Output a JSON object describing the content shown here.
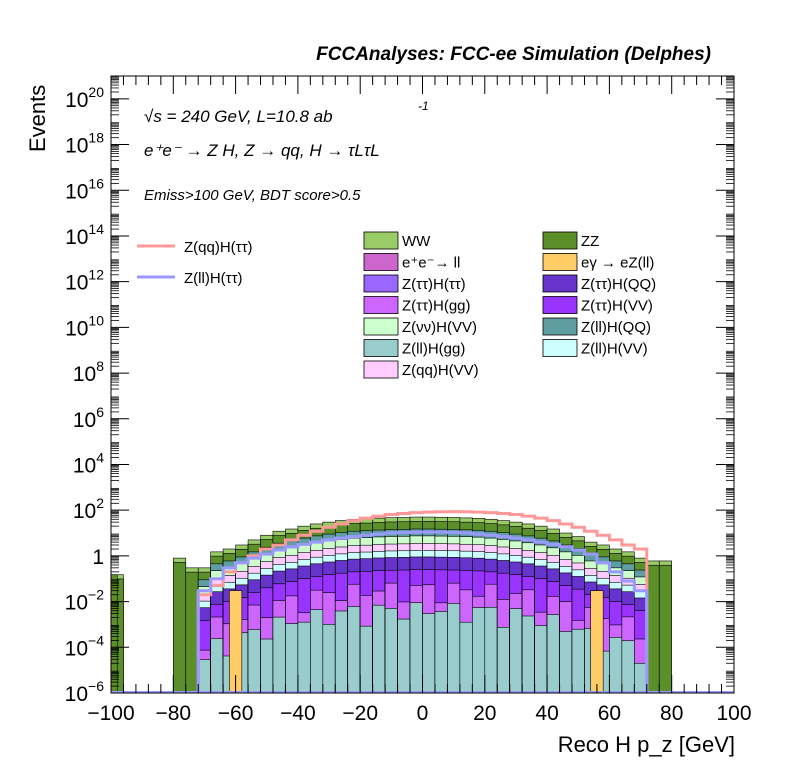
{
  "header": {
    "title": "FCCAnalyses: FCC-ee Simulation (Delphes)"
  },
  "annotations": {
    "line1": "√s = 240 GeV, L=10.8 ab",
    "line1_sup": "-1",
    "line2": "e⁺e⁻ → Z H, Z → qq, H → τLτL",
    "line3": "Emiss>100 GeV, BDT score>0.5"
  },
  "chart_data": {
    "type": "bar",
    "style": "stacked histogram with signal overlay lines",
    "xlabel": "Reco H p_z [GeV]",
    "ylabel": "Events",
    "xlim": [
      -100,
      100
    ],
    "ylim": [
      1e-06,
      1e+21
    ],
    "y_scale": "log",
    "bin_width": 4,
    "x_ticks": [
      -100,
      -80,
      -60,
      -40,
      -20,
      0,
      20,
      40,
      60,
      80,
      100
    ],
    "x_tick_labels": [
      "−100",
      "−80",
      "−60",
      "−40",
      "−20",
      "0",
      "20",
      "40",
      "60",
      "80",
      "100"
    ],
    "y_ticks": [
      {
        "value": 1e-06,
        "base": "10",
        "exp": "−6"
      },
      {
        "value": 0.0001,
        "base": "10",
        "exp": "−4"
      },
      {
        "value": 0.01,
        "base": "10",
        "exp": "−2"
      },
      {
        "value": 1,
        "base": "1",
        "exp": ""
      },
      {
        "value": 100.0,
        "base": "10",
        "exp": "2"
      },
      {
        "value": 10000.0,
        "base": "10",
        "exp": "4"
      },
      {
        "value": 1000000.0,
        "base": "10",
        "exp": "6"
      },
      {
        "value": 100000000.0,
        "base": "10",
        "exp": "8"
      },
      {
        "value": 10000000000.0,
        "base": "10",
        "exp": "10"
      },
      {
        "value": 1000000000000.0,
        "base": "10",
        "exp": "12"
      },
      {
        "value": 100000000000000.0,
        "base": "10",
        "exp": "14"
      },
      {
        "value": 1e+16,
        "base": "10",
        "exp": "16"
      },
      {
        "value": 1e+18,
        "base": "10",
        "exp": "18"
      },
      {
        "value": 1e+20,
        "base": "10",
        "exp": "20"
      }
    ],
    "stack_total": {
      "range": [
        -100,
        100
      ],
      "values": [
        0.15,
        1e-06,
        1e-06,
        1e-06,
        1e-06,
        0.8,
        0.3,
        0.3,
        1.5,
        2,
        3,
        5,
        8,
        12,
        15,
        20,
        25,
        30,
        35,
        40,
        42,
        45,
        47,
        48,
        50,
        50,
        49,
        48,
        46,
        44,
        40,
        35,
        30,
        25,
        20,
        15,
        10,
        7,
        4,
        3,
        2,
        1.5,
        0.8,
        0.6,
        0.6,
        1e-06,
        1e-06,
        1e-06,
        1e-06,
        1e-06
      ]
    },
    "background_layers": [
      {
        "name": "WW",
        "color": "#99cc66",
        "fraction": 1.0
      },
      {
        "name": "ZZ",
        "color": "#5a8f29",
        "fraction": 0.65
      },
      {
        "name": "Z(ll)H(QQ)",
        "color": "#5f9ea0",
        "fraction": 0.3
      },
      {
        "name": "Z(νν)H(VV)",
        "color": "#ccffcc",
        "fraction": 0.15
      },
      {
        "name": "Z(qq)H(VV)",
        "color": "#ffccff",
        "fraction": 0.07
      },
      {
        "name": "Z(ll)H(VV)",
        "color": "#ccffff",
        "fraction": 0.035
      },
      {
        "name": "Z(ττ)H(QQ)",
        "color": "#6633cc",
        "fraction": 0.018
      },
      {
        "name": "Z(ττ)H(VV)",
        "color": "#9933ff",
        "fraction": 0.005
      },
      {
        "name": "Z(ττ)H(gg)",
        "color": "#cc66ff",
        "fraction": 0.0008
      },
      {
        "name": "Z(ll)H(gg)",
        "color": "#99cccc",
        "fraction": 0.0001
      }
    ],
    "layer_range": [
      -72,
      72
    ],
    "extra_bins": [
      {
        "name": "eγ → eZ(ll)",
        "color": "#ffcc66",
        "x": [
          -62,
          -58
        ],
        "value": 0.03
      },
      {
        "name": "eγ → eZ(ll)",
        "color": "#ffcc66",
        "x": [
          54,
          58
        ],
        "value": 0.03
      },
      {
        "name": "ZZ",
        "color": "#5a8f29",
        "x": [
          -100,
          -98
        ],
        "value": 0.15
      }
    ],
    "legend_bkg": [
      {
        "label": "WW",
        "sup": "",
        "color": "#99cc66"
      },
      {
        "label": "ZZ",
        "sup": "",
        "color": "#5a8f29"
      },
      {
        "label": "e⁺e⁻→ ll",
        "sup": "",
        "color": "#cc66cc"
      },
      {
        "label": "eγ → eZ(ll)",
        "sup": "",
        "color": "#ffcc66"
      },
      {
        "label": "Z(ττ)H(ττ)",
        "sup": "",
        "color": "#9966ff"
      },
      {
        "label": "Z(ττ)H(QQ)",
        "sup": "",
        "color": "#6633cc"
      },
      {
        "label": "Z(ττ)H(gg)",
        "sup": "",
        "color": "#cc66ff"
      },
      {
        "label": "Z(ττ)H(VV)",
        "sup": "",
        "color": "#9933ff"
      },
      {
        "label": "Z(νν)H(VV)",
        "sup": "",
        "color": "#ccffcc"
      },
      {
        "label": "Z(ll)H(QQ)",
        "sup": "",
        "color": "#5f9ea0"
      },
      {
        "label": "Z(ll)H(gg)",
        "sup": "",
        "color": "#99cccc"
      },
      {
        "label": "Z(ll)H(VV)",
        "sup": "",
        "color": "#ccffff"
      },
      {
        "label": "Z(qq)H(VV)",
        "sup": "",
        "color": "#ffccff"
      }
    ],
    "signals": [
      {
        "name": "Z(qq)H(ττ)",
        "color": "#ff9999",
        "range": [
          -72,
          72
        ],
        "values": [
          0.02,
          0.05,
          0.2,
          0.5,
          1,
          2,
          3,
          5,
          8,
          12,
          18,
          25,
          35,
          45,
          55,
          65,
          72,
          78,
          82,
          85,
          86,
          85,
          82,
          78,
          72,
          65,
          55,
          45,
          35,
          25,
          18,
          12,
          8,
          5,
          3,
          2
        ]
      },
      {
        "name": "Z(ll)H(ττ)",
        "color": "#9999ff",
        "range": [
          -72,
          72
        ],
        "values": [
          0.03,
          0.1,
          0.3,
          0.5,
          0.8,
          1.2,
          1.8,
          2.5,
          3.2,
          4,
          5,
          6,
          7,
          8,
          9,
          10,
          10.5,
          11,
          11,
          11,
          10.5,
          10,
          9,
          8,
          7,
          6,
          5,
          4,
          3.2,
          2.5,
          1.8,
          1.2,
          0.5,
          0.2,
          0.08,
          0.03
        ]
      }
    ]
  }
}
